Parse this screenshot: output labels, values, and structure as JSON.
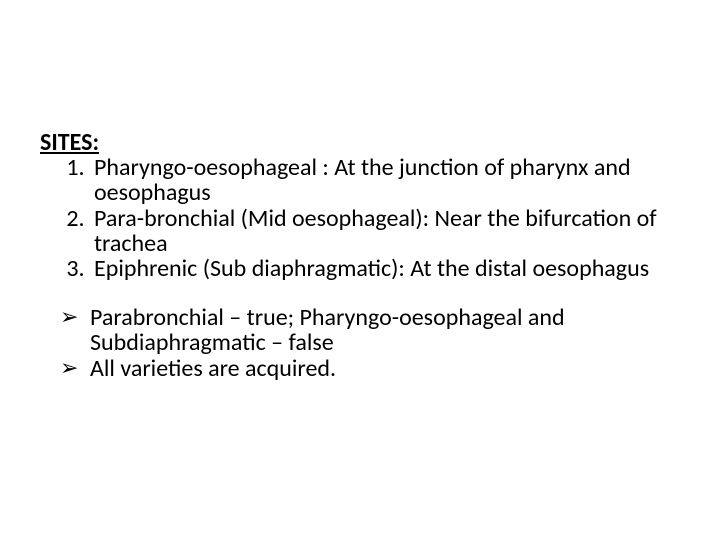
{
  "text_color": "#000000",
  "background_color": "#ffffff",
  "font_family": "Calibri, 'Segoe UI', Arial, sans-serif",
  "heading_fontsize": 24,
  "body_fontsize": 24,
  "heading": "SITES:",
  "sites": [
    "Pharyngo-oesophageal : At the junction of pharynx and oesophagus",
    "Para-bronchial (Mid oesophageal): Near the bifurcation of trachea",
    "Epiphrenic (Sub diaphragmatic): At the distal oesophagus"
  ],
  "arrow_glyph": "➢",
  "notes": [
    "Parabronchial – true; Pharyngo-oesophageal and Subdiaphragmatic – false",
    "All varieties are acquired."
  ]
}
